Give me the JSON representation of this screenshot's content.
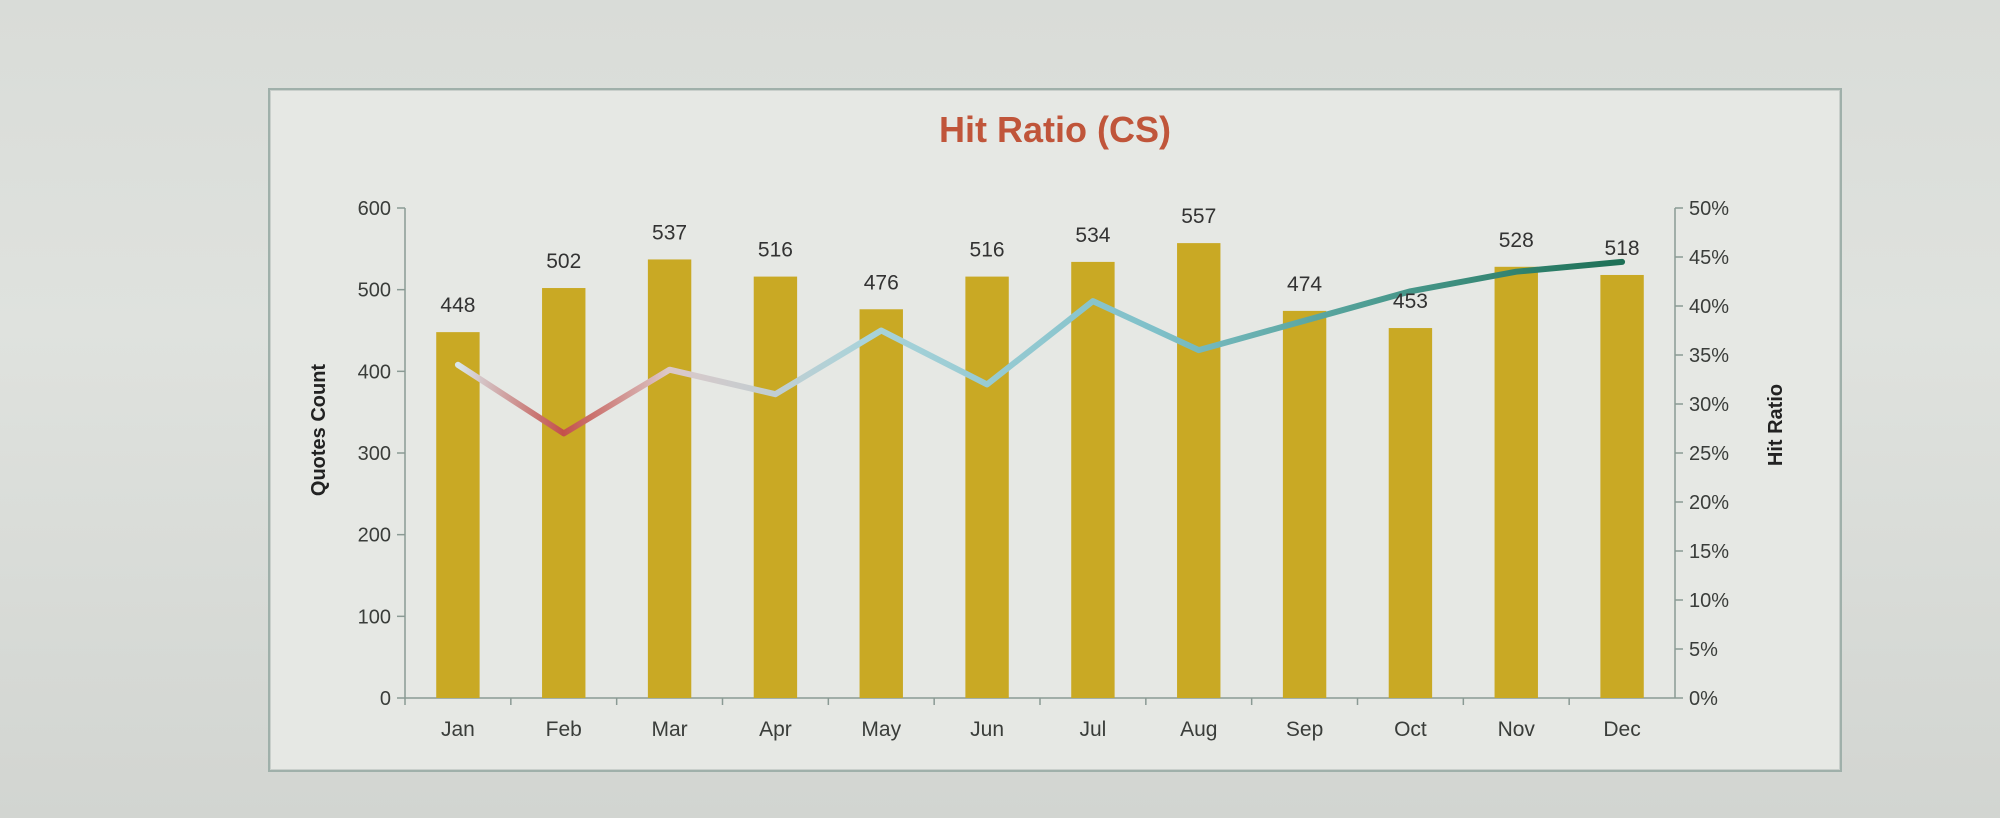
{
  "chart_data": {
    "type": "bar",
    "title": "Hit Ratio (CS)",
    "categories": [
      "Jan",
      "Feb",
      "Mar",
      "Apr",
      "May",
      "Jun",
      "Jul",
      "Aug",
      "Sep",
      "Oct",
      "Nov",
      "Dec"
    ],
    "series": [
      {
        "values": [
          448,
          502,
          537,
          516,
          476,
          516,
          534,
          557,
          474,
          453,
          528,
          518
        ],
        "axis": "left",
        "color": "#c9a924"
      },
      {
        "type": "line",
        "values": [
          0.34,
          0.27,
          0.335,
          0.31,
          0.375,
          0.32,
          0.405,
          0.355,
          0.385,
          0.415,
          0.435,
          0.445
        ],
        "axis": "right"
      }
    ],
    "ylabel": "Quotes Count",
    "y2label": "Hit Ratio",
    "ylim": [
      0,
      600
    ],
    "y2lim": [
      0,
      0.5
    ],
    "yticks": [
      "0",
      "100",
      "200",
      "300",
      "400",
      "500",
      "600"
    ],
    "y2ticks": [
      "0%",
      "5%",
      "10%",
      "15%",
      "20%",
      "25%",
      "30%",
      "35%",
      "40%",
      "45%",
      "50%"
    ],
    "grid": false,
    "legend": "none",
    "data_labels": [
      "448",
      "502",
      "537",
      "516",
      "476",
      "516",
      "534",
      "557",
      "474",
      "453",
      "528",
      "518"
    ],
    "colors": {
      "bar": "#c9a924",
      "line_low": "#c4504a",
      "line_mid": "#8ec9d2",
      "line_high": "#1d6f55",
      "title": "#c0553a"
    }
  }
}
